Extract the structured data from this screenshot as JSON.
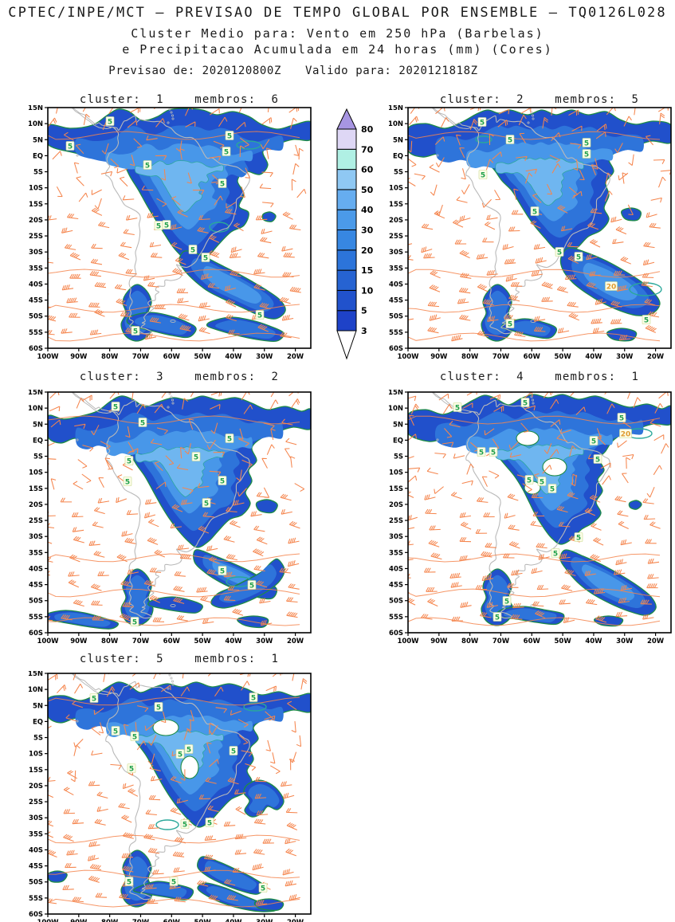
{
  "header": {
    "title": "CPTEC/INPE/MCT – PREVISAO DE TEMPO GLOBAL POR ENSEMBLE – TQ0126L028",
    "subtitle1": "Cluster Medio para: Vento em 250 hPa (Barbelas)",
    "subtitle2": "e Precipitacao Acumulada em 24 horas (mm) (Cores)",
    "forecast": "Previsao de: 2020120800Z",
    "valid": "Valido para: 2020121818Z"
  },
  "panels": [
    {
      "title": "cluster:  1    membros:  6",
      "cluster": 1,
      "membros": 6
    },
    {
      "title": "cluster:  2    membros:  5",
      "cluster": 2,
      "membros": 5
    },
    {
      "title": "cluster:  3    membros:  2",
      "cluster": 3,
      "membros": 2
    },
    {
      "title": "cluster:  4    membros:  1",
      "cluster": 4,
      "membros": 1
    },
    {
      "title": "cluster:  5    membros:  1",
      "cluster": 5,
      "membros": 1
    }
  ],
  "axes": {
    "lat": [
      "15N",
      "10N",
      "5N",
      "EQ",
      "5S",
      "10S",
      "15S",
      "20S",
      "25S",
      "30S",
      "35S",
      "40S",
      "45S",
      "50S",
      "55S",
      "60S"
    ],
    "lon": [
      "100W",
      "90W",
      "80W",
      "70W",
      "60W",
      "50W",
      "40W",
      "30W",
      "20W"
    ]
  },
  "colorbar": {
    "levels": [
      3,
      5,
      10,
      15,
      20,
      30,
      40,
      50,
      60,
      70,
      80
    ],
    "segment_colors": [
      "#1e42c8",
      "#2152cc",
      "#2663d2",
      "#2c74da",
      "#3787e2",
      "#4b9ae9",
      "#66adf0",
      "#8fc8f3",
      "#b0f0e4",
      "#ded7f5"
    ],
    "over_color": "#a795e2",
    "under_color": "#ffffff"
  },
  "style": {
    "precip_colors": [
      "#2150cb",
      "#2e74da",
      "#4897e9",
      "#6fb6f0"
    ],
    "contour_green": "#1e8c46",
    "contour_teal": "#2aa89a",
    "barb_color": "#f5854d",
    "coast_color": "#b9b9b9",
    "label5_color": "#1fa04a",
    "label20_color": "#df9a2f",
    "label_bg": "#fcfde8",
    "frame_color": "#000000"
  },
  "chart_data": {
    "type": "map",
    "product": "ensemble-cluster-mean",
    "center": "CPTEC/INPE/MCT",
    "model": "TQ0126L028",
    "shaded_variable": "Precipitacao Acumulada em 24 horas (mm) (Cores)",
    "vector_variable": "Vento em 250 hPa (Barbelas)",
    "init_time": "2020120800Z",
    "valid_time": "2020121818Z",
    "lon_range": [
      "100W",
      "15W"
    ],
    "lat_range": [
      "15N",
      "60S"
    ],
    "precip_scale_mm": [
      3,
      5,
      10,
      15,
      20,
      30,
      40,
      50,
      60,
      70,
      80
    ],
    "clusters": [
      {
        "cluster": 1,
        "membros": 6
      },
      {
        "cluster": 2,
        "membros": 5
      },
      {
        "cluster": 3,
        "membros": 2
      },
      {
        "cluster": 4,
        "membros": 1
      },
      {
        "cluster": 5,
        "membros": 1
      }
    ],
    "contour_labels": {
      "p1": [
        [
          "5",
          78,
          17
        ],
        [
          "5",
          28,
          48
        ],
        [
          "5",
          125,
          72
        ],
        [
          "5",
          228,
          35
        ],
        [
          "5",
          224,
          55
        ],
        [
          "5",
          219,
          95
        ],
        [
          "5",
          139,
          148
        ],
        [
          "5",
          149,
          147
        ],
        [
          "5",
          182,
          178
        ],
        [
          "5",
          198,
          188
        ],
        [
          "5",
          110,
          280
        ],
        [
          "5",
          266,
          260
        ]
      ],
      "p2": [
        [
          "5",
          93,
          18
        ],
        [
          "5",
          128,
          40
        ],
        [
          "5",
          94,
          84
        ],
        [
          "5",
          224,
          44
        ],
        [
          "5",
          224,
          58
        ],
        [
          "5",
          159,
          130
        ],
        [
          "5",
          190,
          181
        ],
        [
          "5",
          214,
          187
        ],
        [
          "20",
          255,
          224
        ],
        [
          "5",
          299,
          266
        ],
        [
          "5",
          128,
          271
        ]
      ],
      "p3": [
        [
          "5",
          85,
          18
        ],
        [
          "5",
          119,
          38
        ],
        [
          "5",
          102,
          86
        ],
        [
          "5",
          100,
          112
        ],
        [
          "5",
          228,
          58
        ],
        [
          "5",
          186,
          81
        ],
        [
          "5",
          219,
          111
        ],
        [
          "5",
          199,
          139
        ],
        [
          "5",
          219,
          224
        ],
        [
          "5",
          256,
          242
        ],
        [
          "5",
          109,
          288
        ]
      ],
      "p4": [
        [
          "5",
          62,
          19
        ],
        [
          "5",
          147,
          13
        ],
        [
          "5",
          268,
          32
        ],
        [
          "20",
          273,
          52
        ],
        [
          "5",
          233,
          61
        ],
        [
          "5",
          92,
          75
        ],
        [
          "5",
          107,
          75
        ],
        [
          "5",
          238,
          84
        ],
        [
          "5",
          152,
          110
        ],
        [
          "5",
          168,
          112
        ],
        [
          "5",
          181,
          121
        ],
        [
          "5",
          214,
          182
        ],
        [
          "5",
          185,
          202
        ],
        [
          "5",
          124,
          262
        ],
        [
          "5",
          112,
          282
        ]
      ],
      "p5": [
        [
          "5",
          58,
          31
        ],
        [
          "5",
          139,
          42
        ],
        [
          "5",
          258,
          30
        ],
        [
          "5",
          85,
          72
        ],
        [
          "5",
          109,
          79
        ],
        [
          "5",
          166,
          101
        ],
        [
          "5",
          177,
          95
        ],
        [
          "5",
          233,
          97
        ],
        [
          "5",
          105,
          119
        ],
        [
          "5",
          172,
          189
        ],
        [
          "5",
          203,
          187
        ],
        [
          "5",
          102,
          261
        ],
        [
          "5",
          158,
          261
        ],
        [
          "5",
          270,
          269
        ]
      ]
    }
  }
}
